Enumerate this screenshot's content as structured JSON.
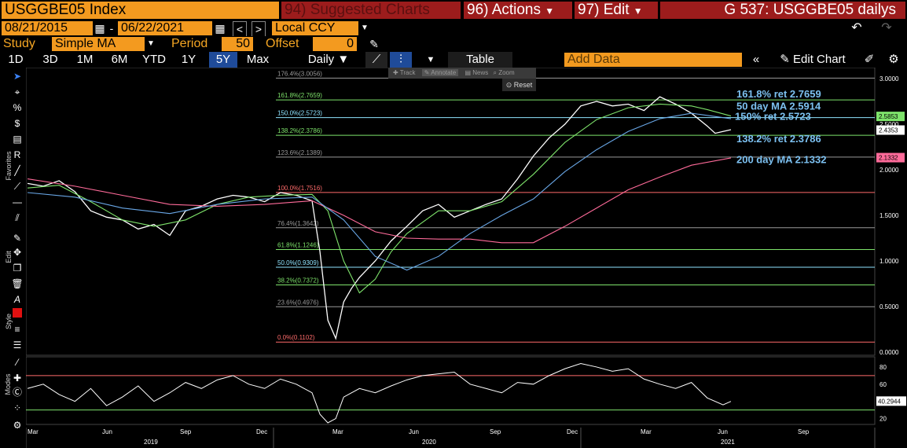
{
  "header": {
    "ticker": "USGGBE05 Index",
    "suggested": "94) Suggested Charts",
    "actions": "96) Actions",
    "edit": "97) Edit",
    "title": "G 537: USGGBE05 dailys"
  },
  "dates": {
    "start": "08/21/2015",
    "end": "06/22/2021",
    "currency": "Local CCY"
  },
  "study": {
    "label": "Study",
    "value": "Simple MA",
    "period_label": "Period",
    "period": "50",
    "offset_label": "Offset",
    "offset": "0"
  },
  "ranges": [
    "1D",
    "3D",
    "1M",
    "6M",
    "YTD",
    "1Y",
    "5Y",
    "Max"
  ],
  "active_range": "5Y",
  "toolbar": {
    "frequency": "Daily",
    "table": "Table",
    "add_data": "Add Data",
    "edit_chart": "Edit Chart"
  },
  "popup": {
    "track": "Track",
    "annotate": "Annotate",
    "news": "News",
    "zoom": "Zoom",
    "reset": "Reset"
  },
  "side_labels": {
    "favorites": "Favorites",
    "edit": "Edit",
    "style": "Style",
    "modes": "Modes"
  },
  "chart_data": [
    {
      "type": "line",
      "title": "",
      "ylim": [
        0,
        3.0
      ],
      "y_ticks": [
        "3.0000",
        "2.5000",
        "2.0000",
        "1.5000",
        "1.0000",
        "0.5000",
        "0.0000"
      ],
      "x_labels": [
        "Mar",
        "Jun",
        "Sep",
        "Dec",
        "Mar",
        "Jun",
        "Sep",
        "Dec",
        "Mar",
        "Jun",
        "Sep"
      ],
      "year_labels": [
        "2019",
        "2020",
        "2021"
      ],
      "fib_levels": [
        {
          "label": "176.4%(3.0056)",
          "value": 3.0056,
          "color": "#9a9a9a"
        },
        {
          "label": "161.8%(2.7659)",
          "value": 2.7659,
          "color": "#7ee36b"
        },
        {
          "label": "150.0%(2.5723)",
          "value": 2.5723,
          "color": "#8fe4ff"
        },
        {
          "label": "138.2%(2.3786)",
          "value": 2.3786,
          "color": "#7ee36b"
        },
        {
          "label": "123.6%(2.1389)",
          "value": 2.1389,
          "color": "#9a9a9a"
        },
        {
          "label": "100.0%(1.7516)",
          "value": 1.7516,
          "color": "#ff6b6b"
        },
        {
          "label": "76.4%(1.3642)",
          "value": 1.3642,
          "color": "#9a9a9a"
        },
        {
          "label": "61.8%(1.1246)",
          "value": 1.1246,
          "color": "#7ee36b"
        },
        {
          "label": "50.0%(0.9309)",
          "value": 0.9309,
          "color": "#8fe4ff"
        },
        {
          "label": "38.2%(0.7372)",
          "value": 0.7372,
          "color": "#7ee36b"
        },
        {
          "label": "23.6%(0.4976)",
          "value": 0.4976,
          "color": "#9a9a9a"
        },
        {
          "label": "0.0%(0.1102)",
          "value": 0.1102,
          "color": "#ff6b6b"
        }
      ],
      "annotations": [
        {
          "text": "161.8% ret 2.7659",
          "value": 2.7659
        },
        {
          "text": "50 day MA 2.5914",
          "value": 2.5914
        },
        {
          "text": "150% ret 2.5723",
          "value": 2.5723
        },
        {
          "text": "138.2% ret 2.3786",
          "value": 2.3786
        },
        {
          "text": "200 day MA 2.1332",
          "value": 2.1332
        }
      ],
      "price_tags": [
        {
          "text": "2.5853",
          "value": 2.5853,
          "bg": "#7ee36b"
        },
        {
          "text": "2.4353",
          "value": 2.4353,
          "bg": "#ffffff"
        },
        {
          "text": "2.1332",
          "value": 2.1332,
          "bg": "#ff6b9a"
        }
      ],
      "series": [
        {
          "name": "",
          "color": "#ffffff",
          "x": [
            0,
            2,
            4,
            6,
            8,
            10,
            12,
            14,
            16,
            18,
            20,
            22,
            24,
            26,
            28,
            30,
            32,
            34,
            36,
            37,
            38,
            39,
            40,
            41,
            42,
            44,
            46,
            48,
            50,
            52,
            54,
            56,
            58,
            60,
            62,
            64,
            66,
            68,
            70,
            72,
            74,
            76,
            78,
            80,
            82,
            84,
            85,
            86,
            87,
            88,
            89
          ],
          "values": [
            1.85,
            1.82,
            1.88,
            1.76,
            1.55,
            1.48,
            1.45,
            1.35,
            1.4,
            1.28,
            1.55,
            1.6,
            1.68,
            1.72,
            1.7,
            1.65,
            1.75,
            1.72,
            1.66,
            1.1,
            0.35,
            0.15,
            0.55,
            0.7,
            0.82,
            1.0,
            1.22,
            1.38,
            1.55,
            1.62,
            1.48,
            1.55,
            1.62,
            1.68,
            1.9,
            2.15,
            2.35,
            2.5,
            2.7,
            2.75,
            2.7,
            2.72,
            2.65,
            2.8,
            2.72,
            2.62,
            2.55,
            2.48,
            2.4,
            2.42,
            2.44
          ]
        },
        {
          "name": "50 day MA",
          "color": "#7ee36b",
          "x": [
            0,
            4,
            8,
            12,
            16,
            20,
            24,
            28,
            32,
            36,
            38,
            40,
            42,
            44,
            46,
            48,
            52,
            56,
            60,
            64,
            68,
            72,
            76,
            80,
            84,
            86,
            89
          ],
          "values": [
            1.8,
            1.83,
            1.65,
            1.45,
            1.38,
            1.45,
            1.62,
            1.7,
            1.72,
            1.73,
            1.55,
            1.0,
            0.65,
            0.8,
            1.1,
            1.3,
            1.55,
            1.55,
            1.65,
            1.95,
            2.3,
            2.55,
            2.68,
            2.72,
            2.7,
            2.66,
            2.59
          ]
        },
        {
          "name": "200 day MA",
          "color": "#ff6b9a",
          "x": [
            0,
            6,
            12,
            18,
            24,
            30,
            36,
            40,
            44,
            48,
            52,
            56,
            60,
            64,
            68,
            72,
            76,
            80,
            84,
            89
          ],
          "values": [
            1.9,
            1.82,
            1.72,
            1.62,
            1.6,
            1.62,
            1.66,
            1.5,
            1.32,
            1.25,
            1.24,
            1.24,
            1.2,
            1.2,
            1.38,
            1.58,
            1.78,
            1.92,
            2.05,
            2.13
          ]
        },
        {
          "name": "",
          "color": "#6aa8e8",
          "x": [
            0,
            6,
            12,
            18,
            24,
            30,
            36,
            40,
            44,
            48,
            52,
            56,
            60,
            64,
            68,
            72,
            76,
            80,
            84,
            89
          ],
          "values": [
            1.75,
            1.7,
            1.58,
            1.52,
            1.62,
            1.68,
            1.7,
            1.45,
            1.05,
            0.9,
            1.05,
            1.3,
            1.5,
            1.68,
            1.98,
            2.22,
            2.42,
            2.56,
            2.62,
            2.56
          ]
        }
      ]
    },
    {
      "type": "line",
      "title": "",
      "ylim": [
        15,
        90
      ],
      "y_ticks": [
        "80",
        "60",
        "40",
        "20"
      ],
      "upper_band": 70,
      "lower_band": 30,
      "last_value": "40.2944",
      "series": [
        {
          "name": "",
          "color": "#ffffff",
          "x": [
            0,
            2,
            4,
            6,
            8,
            10,
            12,
            14,
            16,
            18,
            20,
            22,
            24,
            26,
            28,
            30,
            32,
            34,
            36,
            37,
            38,
            39,
            40,
            42,
            44,
            46,
            48,
            50,
            52,
            54,
            56,
            58,
            60,
            62,
            64,
            66,
            68,
            70,
            72,
            74,
            76,
            78,
            80,
            82,
            84,
            86,
            88,
            89
          ],
          "values": [
            55,
            60,
            48,
            40,
            55,
            35,
            45,
            58,
            40,
            50,
            62,
            55,
            65,
            70,
            60,
            55,
            66,
            60,
            50,
            25,
            15,
            20,
            45,
            55,
            50,
            58,
            65,
            70,
            72,
            74,
            60,
            55,
            50,
            62,
            60,
            70,
            78,
            84,
            80,
            75,
            78,
            66,
            60,
            55,
            62,
            44,
            36,
            40
          ]
        }
      ]
    }
  ]
}
